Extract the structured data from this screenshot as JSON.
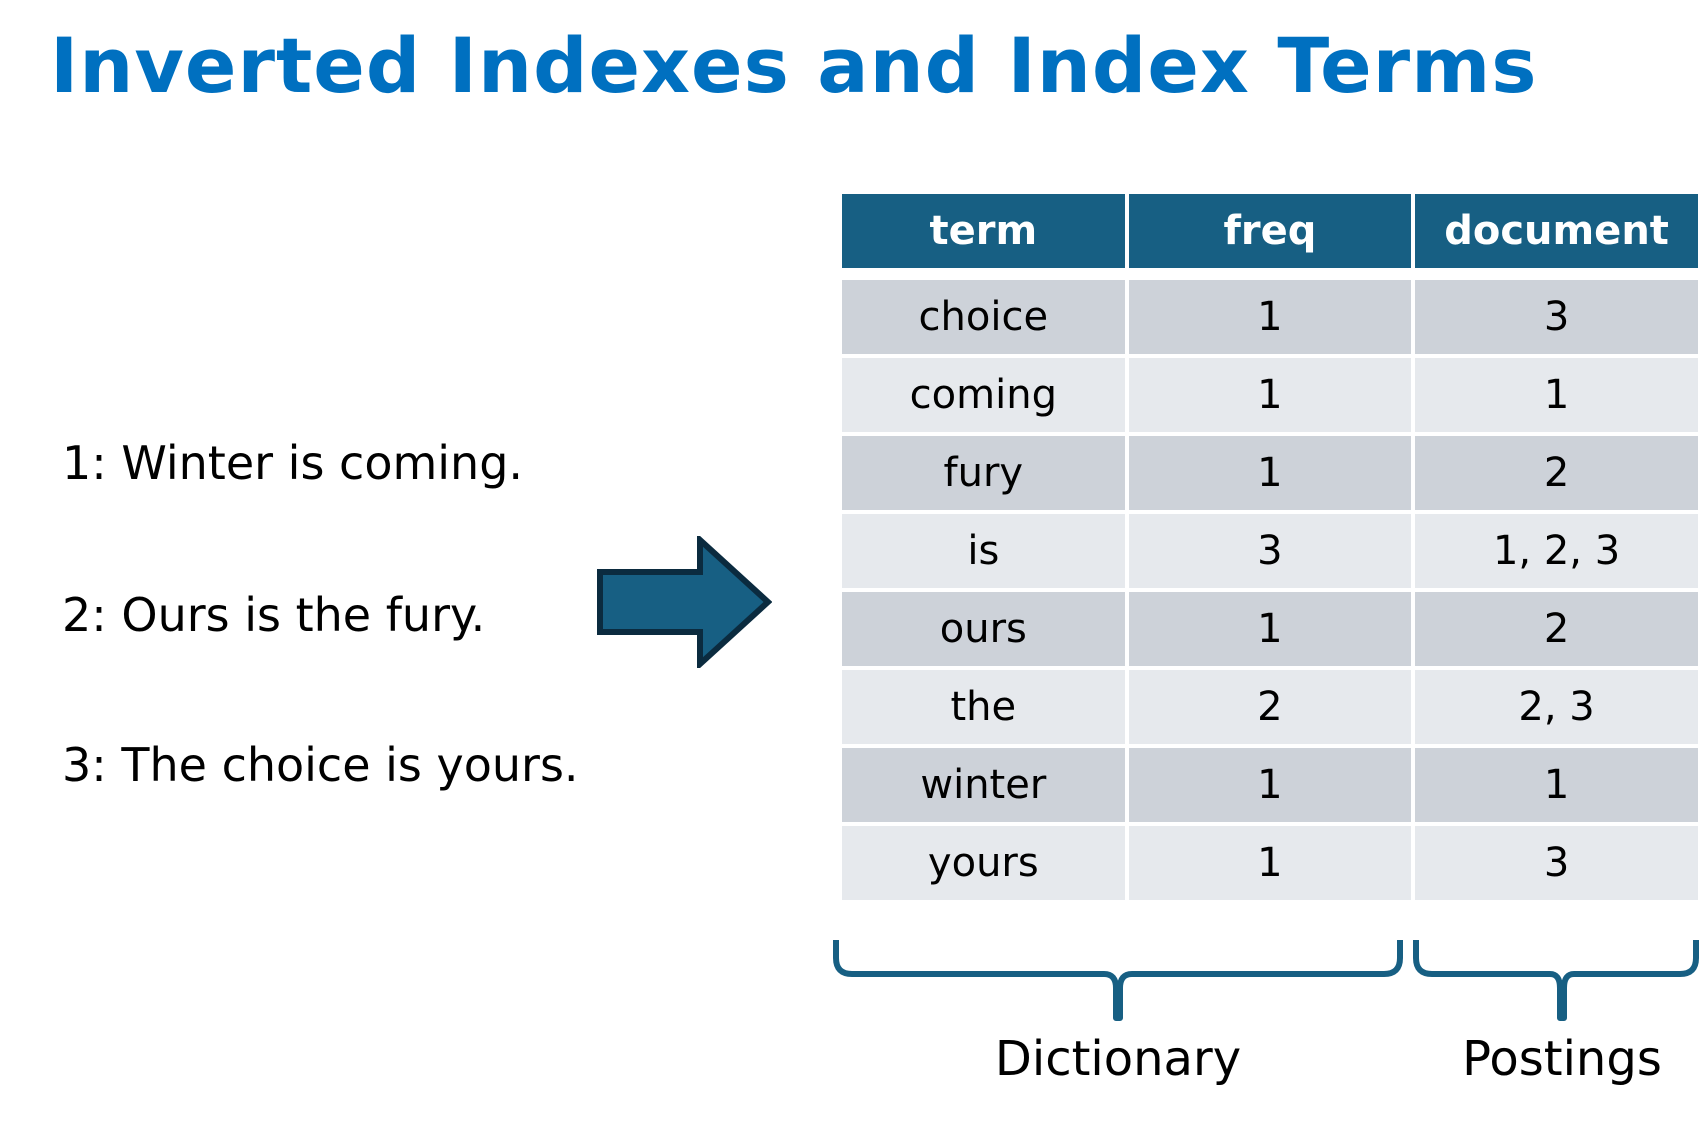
{
  "title": "Inverted Indexes and Index Terms",
  "documents": [
    "1: Winter is coming.",
    "2: Ours is the fury.",
    "3: The choice is yours."
  ],
  "table": {
    "headers": [
      "term",
      "freq",
      "document"
    ],
    "rows": [
      [
        "choice",
        "1",
        "3"
      ],
      [
        "coming",
        "1",
        "1"
      ],
      [
        "fury",
        "1",
        "2"
      ],
      [
        "is",
        "3",
        "1, 2, 3"
      ],
      [
        "ours",
        "1",
        "2"
      ],
      [
        "the",
        "2",
        "2, 3"
      ],
      [
        "winter",
        "1",
        "1"
      ],
      [
        "yours",
        "1",
        "3"
      ]
    ]
  },
  "labels": {
    "dictionary": "Dictionary",
    "postings": "Postings"
  },
  "colors": {
    "title": "#0070c0",
    "header_bg": "#175f83",
    "row_dark": "#cdd2d9",
    "row_light": "#e6e9ed",
    "arrow_fill": "#175f83",
    "arrow_stroke": "#0b2b3f",
    "brace": "#175f83"
  },
  "icons": {
    "arrow": "right-arrow-icon",
    "brace": "curly-brace-icon"
  }
}
